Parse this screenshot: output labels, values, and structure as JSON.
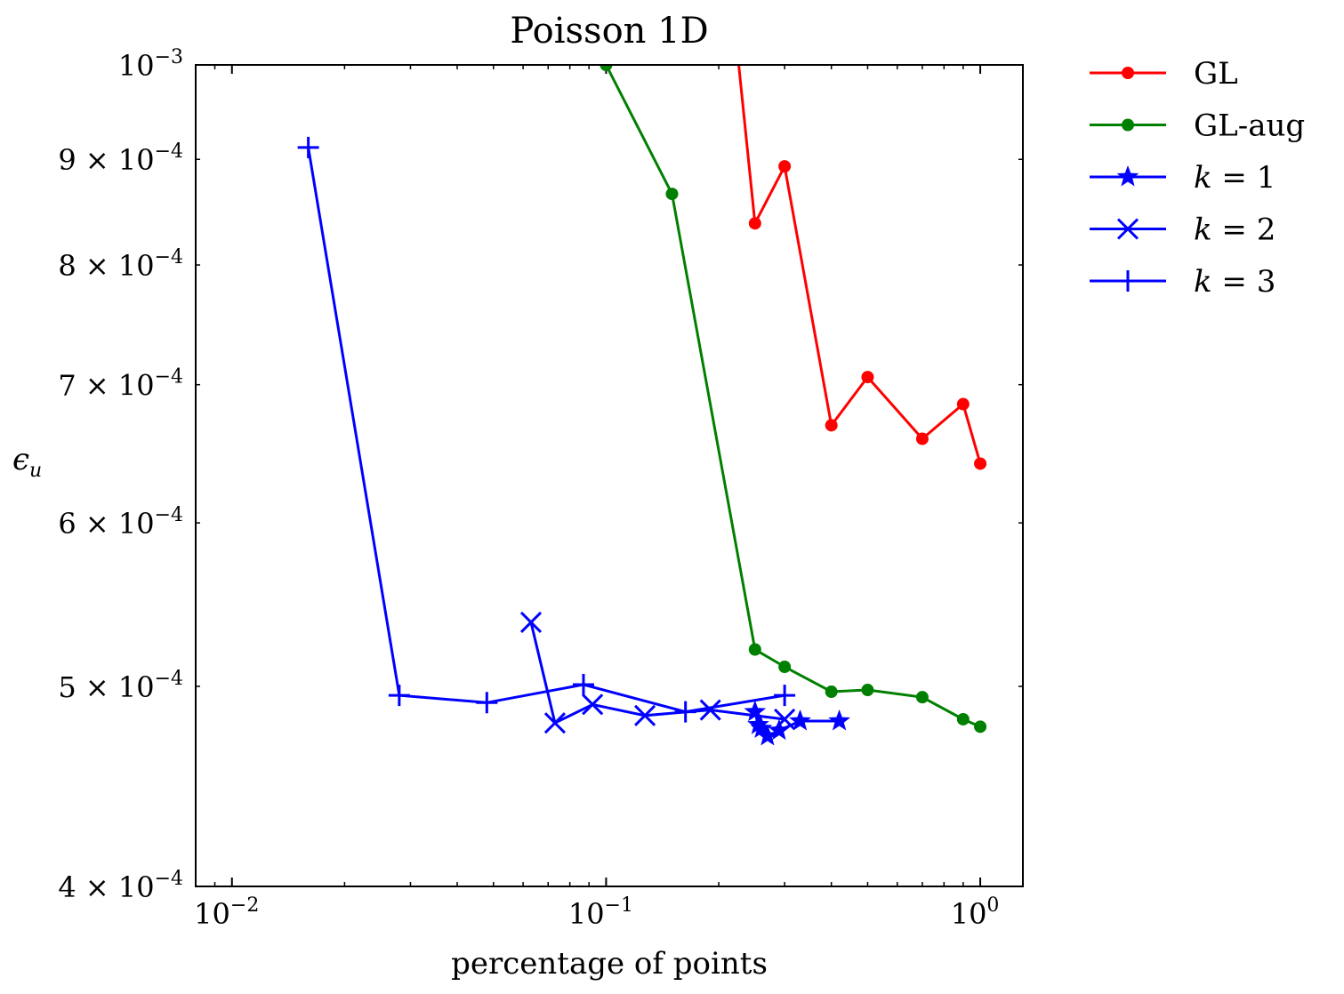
{
  "chart_data": {
    "type": "line",
    "title": "Poisson 1D",
    "xlabel": "percentage of points",
    "ylabel_base": "ϵ",
    "ylabel_sub": "u",
    "xscale": "log",
    "yscale": "log",
    "xlim": [
      0.008,
      1.3
    ],
    "ylim": [
      0.0004,
      0.001
    ],
    "legend_position": "outside-right",
    "x_ticks": [
      {
        "value": 0.01,
        "base": "10",
        "exp": "−2"
      },
      {
        "value": 0.1,
        "base": "10",
        "exp": "−1"
      },
      {
        "value": 1,
        "base": "10",
        "exp": "0"
      }
    ],
    "y_ticks": [
      {
        "value": 0.0004,
        "mant": "4 × ",
        "base": "10",
        "exp": "−4"
      },
      {
        "value": 0.0005,
        "mant": "5 × ",
        "base": "10",
        "exp": "−4"
      },
      {
        "value": 0.0006,
        "mant": "6 × ",
        "base": "10",
        "exp": "−4"
      },
      {
        "value": 0.0007,
        "mant": "7 × ",
        "base": "10",
        "exp": "−4"
      },
      {
        "value": 0.0008,
        "mant": "8 × ",
        "base": "10",
        "exp": "−4"
      },
      {
        "value": 0.0009,
        "mant": "9 × ",
        "base": "10",
        "exp": "−4"
      },
      {
        "value": 0.001,
        "mant": "",
        "base": "10",
        "exp": "−3"
      }
    ],
    "series": [
      {
        "name": "GL",
        "color": "#ff0000",
        "marker": "dot",
        "x": [
          0.22,
          0.25,
          0.3,
          0.4,
          0.5,
          0.7,
          0.9,
          1.0
        ],
        "y": [
          0.00105,
          0.000838,
          0.000893,
          0.000669,
          0.000706,
          0.000659,
          0.000685,
          0.000641
        ]
      },
      {
        "name": "GL-aug",
        "color": "#008000",
        "marker": "dot",
        "x": [
          0.1,
          0.15,
          0.25,
          0.3,
          0.4,
          0.5,
          0.7,
          0.9,
          1.0
        ],
        "y": [
          0.001,
          0.000866,
          0.000521,
          0.000511,
          0.000497,
          0.000498,
          0.000494,
          0.000482,
          0.000478
        ]
      },
      {
        "name": "k = 1",
        "legend_var": "k",
        "legend_val": "= 1",
        "color": "#0000ff",
        "marker": "star",
        "x": [
          0.25,
          0.255,
          0.26,
          0.27,
          0.29,
          0.33,
          0.42
        ],
        "y": [
          0.000486,
          0.000479,
          0.000477,
          0.000473,
          0.000476,
          0.000481,
          0.000481
        ]
      },
      {
        "name": "k = 2",
        "legend_var": "k",
        "legend_val": "= 2",
        "color": "#0000ff",
        "marker": "x",
        "x": [
          0.063,
          0.073,
          0.092,
          0.127,
          0.19,
          0.3
        ],
        "y": [
          0.000537,
          0.00048,
          0.00049,
          0.000484,
          0.000487,
          0.000482
        ]
      },
      {
        "name": "k = 3",
        "legend_var": "k",
        "legend_val": "= 3",
        "color": "#0000ff",
        "marker": "plus",
        "x": [
          0.016,
          0.028,
          0.048,
          0.087,
          0.163,
          0.3
        ],
        "y": [
          0.000912,
          0.000495,
          0.000491,
          0.000501,
          0.000486,
          0.000495
        ]
      }
    ]
  }
}
